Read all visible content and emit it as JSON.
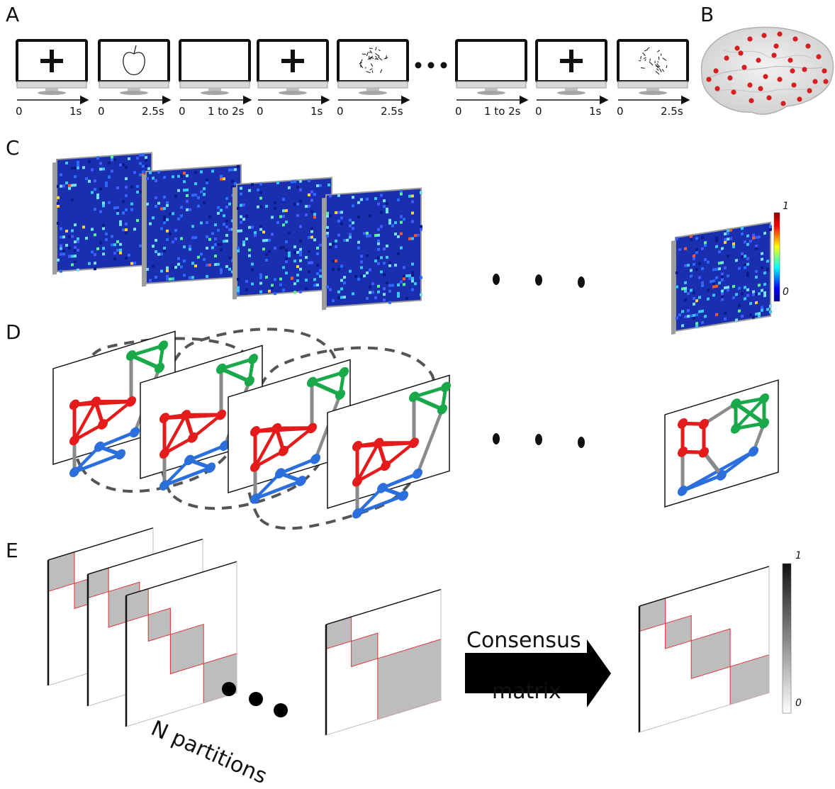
{
  "panels": {
    "a": "A",
    "b": "B",
    "c": "C",
    "d": "D",
    "e": "E"
  },
  "timeline": [
    {
      "start": "0",
      "end": "1s",
      "content": "fixation-cross"
    },
    {
      "start": "0",
      "end": "2.5s",
      "content": "apple-drawing"
    },
    {
      "start": "0",
      "end": "1 to 2s",
      "content": "blank"
    },
    {
      "start": "0",
      "end": "1s",
      "content": "fixation-cross"
    },
    {
      "start": "0",
      "end": "2.5s",
      "content": "complex-drawing"
    },
    {
      "start": "0",
      "end": "1 to 2s",
      "content": "blank"
    },
    {
      "start": "0",
      "end": "1s",
      "content": "fixation-cross"
    },
    {
      "start": "0",
      "end": "2.5s",
      "content": "scene-drawing"
    }
  ],
  "colorbar_c": {
    "max": "1",
    "min": "0"
  },
  "colorbar_e": {
    "max": "1",
    "min": "0"
  },
  "arrow_text": {
    "line1": "Consensus",
    "line2": "matrix"
  },
  "partitions_label": "N partitions",
  "colors": {
    "red": "#e51a1a",
    "green": "#19a84a",
    "blue": "#2a6fdb",
    "edge_gray": "#8a8a8a",
    "matrix_blue": "#1a2fb0",
    "block_gray": "#bdbdbd",
    "block_border": "#e03030"
  }
}
